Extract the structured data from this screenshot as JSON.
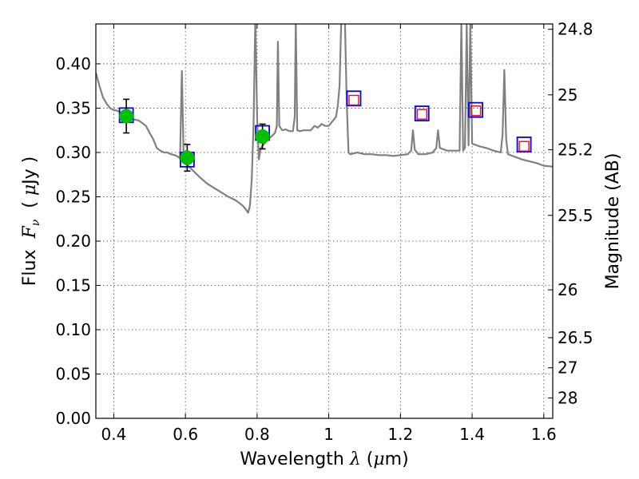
{
  "chart_data": {
    "type": "scatter",
    "title": "",
    "xlabel": {
      "prefix": "Wavelength  ",
      "symbol": "λ",
      "unit_open": " (",
      "unit_mu": "μ",
      "unit_close": "m)"
    },
    "ylabel": {
      "prefix": "Flux  ",
      "symbol": "F",
      "subscript": "ν",
      "unit_open": "  ( ",
      "unit_mu": "μ",
      "unit_close": "Jy )"
    },
    "y2label": "Magnitude (AB)",
    "xlim": [
      0.35,
      1.625
    ],
    "ylim": [
      0.0,
      0.445
    ],
    "grid": true,
    "x_ticks": [
      {
        "value": 0.4,
        "label": "0.4"
      },
      {
        "value": 0.6,
        "label": "0.6"
      },
      {
        "value": 0.8,
        "label": "0.8"
      },
      {
        "value": 1.0,
        "label": "1"
      },
      {
        "value": 1.2,
        "label": "1.2"
      },
      {
        "value": 1.4,
        "label": "1.4"
      },
      {
        "value": 1.6,
        "label": "1.6"
      }
    ],
    "y_ticks": [
      {
        "value": 0.0,
        "label": "0.00"
      },
      {
        "value": 0.05,
        "label": "0.05"
      },
      {
        "value": 0.1,
        "label": "0.10"
      },
      {
        "value": 0.15,
        "label": "0.15"
      },
      {
        "value": 0.2,
        "label": "0.20"
      },
      {
        "value": 0.25,
        "label": "0.25"
      },
      {
        "value": 0.3,
        "label": "0.30"
      },
      {
        "value": 0.35,
        "label": "0.35"
      },
      {
        "value": 0.4,
        "label": "0.40"
      }
    ],
    "y2_ticks": [
      {
        "flux": 0.439,
        "label": "24.8"
      },
      {
        "flux": 0.365,
        "label": "25"
      },
      {
        "flux": 0.303,
        "label": "25.2"
      },
      {
        "flux": 0.229,
        "label": "25.5"
      },
      {
        "flux": 0.145,
        "label": "26"
      },
      {
        "flux": 0.091,
        "label": "26.5"
      },
      {
        "flux": 0.057,
        "label": "27"
      },
      {
        "flux": 0.023,
        "label": "28"
      }
    ],
    "series": [
      {
        "kind": "model_spectrum",
        "color": "#808080",
        "points": [
          [
            0.35,
            0.39
          ],
          [
            0.36,
            0.375
          ],
          [
            0.37,
            0.362
          ],
          [
            0.38,
            0.355
          ],
          [
            0.39,
            0.35
          ],
          [
            0.4,
            0.348
          ],
          [
            0.41,
            0.347
          ],
          [
            0.42,
            0.345
          ],
          [
            0.43,
            0.343
          ],
          [
            0.44,
            0.34
          ],
          [
            0.45,
            0.338
          ],
          [
            0.46,
            0.337
          ],
          [
            0.47,
            0.336
          ],
          [
            0.48,
            0.333
          ],
          [
            0.49,
            0.33
          ],
          [
            0.5,
            0.322
          ],
          [
            0.51,
            0.315
          ],
          [
            0.52,
            0.305
          ],
          [
            0.53,
            0.302
          ],
          [
            0.54,
            0.3
          ],
          [
            0.55,
            0.3
          ],
          [
            0.56,
            0.298
          ],
          [
            0.57,
            0.297
          ],
          [
            0.58,
            0.295
          ],
          [
            0.585,
            0.293
          ],
          [
            0.59,
            0.392
          ],
          [
            0.595,
            0.294
          ],
          [
            0.6,
            0.288
          ],
          [
            0.62,
            0.28
          ],
          [
            0.64,
            0.272
          ],
          [
            0.66,
            0.265
          ],
          [
            0.68,
            0.26
          ],
          [
            0.7,
            0.255
          ],
          [
            0.72,
            0.25
          ],
          [
            0.74,
            0.246
          ],
          [
            0.75,
            0.243
          ],
          [
            0.76,
            0.24
          ],
          [
            0.77,
            0.235
          ],
          [
            0.775,
            0.232
          ],
          [
            0.78,
            0.24
          ],
          [
            0.785,
            0.27
          ],
          [
            0.79,
            0.33
          ],
          [
            0.795,
            0.45
          ],
          [
            0.8,
            0.34
          ],
          [
            0.805,
            0.292
          ],
          [
            0.81,
            0.305
          ],
          [
            0.82,
            0.31
          ],
          [
            0.83,
            0.315
          ],
          [
            0.84,
            0.318
          ],
          [
            0.85,
            0.322
          ],
          [
            0.855,
            0.33
          ],
          [
            0.858,
            0.425
          ],
          [
            0.862,
            0.33
          ],
          [
            0.87,
            0.325
          ],
          [
            0.88,
            0.326
          ],
          [
            0.89,
            0.324
          ],
          [
            0.9,
            0.324
          ],
          [
            0.905,
            0.34
          ],
          [
            0.908,
            0.45
          ],
          [
            0.912,
            0.325
          ],
          [
            0.92,
            0.324
          ],
          [
            0.93,
            0.325
          ],
          [
            0.94,
            0.325
          ],
          [
            0.95,
            0.325
          ],
          [
            0.96,
            0.33
          ],
          [
            0.97,
            0.328
          ],
          [
            0.98,
            0.332
          ],
          [
            0.99,
            0.33
          ],
          [
            1.0,
            0.33
          ],
          [
            1.01,
            0.335
          ],
          [
            1.02,
            0.34
          ],
          [
            1.025,
            0.352
          ],
          [
            1.03,
            0.375
          ],
          [
            1.035,
            0.45
          ],
          [
            1.045,
            0.45
          ],
          [
            1.05,
            0.36
          ],
          [
            1.055,
            0.3
          ],
          [
            1.06,
            0.298
          ],
          [
            1.08,
            0.3
          ],
          [
            1.1,
            0.298
          ],
          [
            1.12,
            0.298
          ],
          [
            1.14,
            0.297
          ],
          [
            1.16,
            0.297
          ],
          [
            1.18,
            0.296
          ],
          [
            1.2,
            0.297
          ],
          [
            1.22,
            0.298
          ],
          [
            1.23,
            0.302
          ],
          [
            1.235,
            0.325
          ],
          [
            1.24,
            0.303
          ],
          [
            1.25,
            0.298
          ],
          [
            1.27,
            0.298
          ],
          [
            1.29,
            0.3
          ],
          [
            1.3,
            0.305
          ],
          [
            1.305,
            0.325
          ],
          [
            1.31,
            0.305
          ],
          [
            1.33,
            0.302
          ],
          [
            1.35,
            0.302
          ],
          [
            1.365,
            0.302
          ],
          [
            1.37,
            0.445
          ],
          [
            1.375,
            0.302
          ],
          [
            1.38,
            0.305
          ],
          [
            1.385,
            0.445
          ],
          [
            1.39,
            0.308
          ],
          [
            1.395,
            0.445
          ],
          [
            1.4,
            0.31
          ],
          [
            1.42,
            0.307
          ],
          [
            1.44,
            0.305
          ],
          [
            1.46,
            0.302
          ],
          [
            1.48,
            0.3
          ],
          [
            1.485,
            0.32
          ],
          [
            1.49,
            0.393
          ],
          [
            1.495,
            0.315
          ],
          [
            1.5,
            0.298
          ],
          [
            1.52,
            0.295
          ],
          [
            1.54,
            0.292
          ],
          [
            1.56,
            0.29
          ],
          [
            1.58,
            0.288
          ],
          [
            1.6,
            0.285
          ],
          [
            1.625,
            0.284
          ]
        ]
      },
      {
        "kind": "model_bandpass_squares",
        "color": "#0000ff",
        "points": [
          [
            0.435,
            0.342
          ],
          [
            0.605,
            0.292
          ],
          [
            0.815,
            0.322
          ],
          [
            1.07,
            0.361
          ],
          [
            1.26,
            0.344
          ],
          [
            1.41,
            0.348
          ],
          [
            1.545,
            0.309
          ]
        ]
      },
      {
        "kind": "upper_limit_squares",
        "color": "#ff0000",
        "points": [
          [
            1.07,
            0.359
          ],
          [
            1.26,
            0.343
          ],
          [
            1.41,
            0.347
          ],
          [
            1.545,
            0.307
          ]
        ]
      },
      {
        "kind": "observed_with_errors",
        "color": "#00c000",
        "points": [
          {
            "x": 0.435,
            "y": 0.341,
            "err": 0.019
          },
          {
            "x": 0.605,
            "y": 0.294,
            "err": 0.015
          },
          {
            "x": 0.815,
            "y": 0.318,
            "err": 0.014
          }
        ]
      }
    ]
  }
}
